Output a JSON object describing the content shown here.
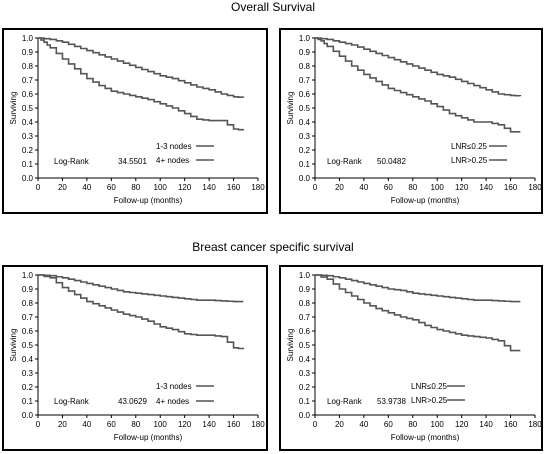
{
  "headings": {
    "overall": "Overall Survival",
    "bcss": "Breast cancer specific survival"
  },
  "chart_data": [
    {
      "type": "line",
      "title": "",
      "xlabel": "Follow-up (months)",
      "ylabel": "Surviving",
      "xlim": [
        0,
        180
      ],
      "ylim": [
        0,
        1.0
      ],
      "xticks": [
        "0",
        "20",
        "40",
        "60",
        "80",
        "100",
        "120",
        "140",
        "160",
        "180"
      ],
      "yticks": [
        "0.0",
        "0.1",
        "0.2",
        "0.3",
        "0.4",
        "0.5",
        "0.6",
        "0.7",
        "0.8",
        "0.9",
        "1.0"
      ],
      "stat_label": "Log-Rank",
      "stat_value": "34.5501",
      "series": [
        {
          "name": "1-3 nodes",
          "color": "#555555",
          "x": [
            0,
            10,
            20,
            30,
            40,
            50,
            60,
            70,
            80,
            90,
            100,
            110,
            120,
            130,
            140,
            150,
            160,
            168
          ],
          "y": [
            1.0,
            0.99,
            0.97,
            0.94,
            0.91,
            0.88,
            0.85,
            0.82,
            0.79,
            0.76,
            0.73,
            0.71,
            0.68,
            0.65,
            0.63,
            0.6,
            0.58,
            0.575
          ]
        },
        {
          "name": "4+ nodes",
          "color": "#555555",
          "x": [
            0,
            5,
            10,
            20,
            30,
            40,
            50,
            60,
            70,
            80,
            90,
            100,
            110,
            120,
            130,
            140,
            150,
            160,
            168
          ],
          "y": [
            1.0,
            0.97,
            0.93,
            0.85,
            0.78,
            0.71,
            0.66,
            0.62,
            0.6,
            0.58,
            0.56,
            0.53,
            0.5,
            0.46,
            0.42,
            0.41,
            0.41,
            0.35,
            0.34
          ]
        }
      ]
    },
    {
      "type": "line",
      "title": "",
      "xlabel": "Follow-up (months)",
      "ylabel": "Surviving",
      "xlim": [
        0,
        180
      ],
      "ylim": [
        0,
        1.0
      ],
      "xticks": [
        "0",
        "20",
        "40",
        "60",
        "80",
        "100",
        "120",
        "140",
        "160",
        "180"
      ],
      "yticks": [
        "0.0",
        "0.1",
        "0.2",
        "0.3",
        "0.4",
        "0.5",
        "0.6",
        "0.7",
        "0.8",
        "0.9",
        "1.0"
      ],
      "stat_label": "Log-Rank",
      "stat_value": "50.0482",
      "series": [
        {
          "name": "LNR≤0.25",
          "color": "#555555",
          "x": [
            0,
            10,
            20,
            30,
            40,
            50,
            60,
            70,
            80,
            90,
            100,
            110,
            120,
            130,
            140,
            150,
            160,
            168
          ],
          "y": [
            1.0,
            0.99,
            0.97,
            0.95,
            0.92,
            0.89,
            0.86,
            0.83,
            0.8,
            0.77,
            0.74,
            0.72,
            0.69,
            0.66,
            0.63,
            0.6,
            0.59,
            0.585
          ]
        },
        {
          "name": "LNR>0.25",
          "color": "#555555",
          "x": [
            0,
            5,
            10,
            20,
            30,
            40,
            50,
            60,
            70,
            80,
            90,
            100,
            110,
            120,
            130,
            140,
            150,
            160,
            168
          ],
          "y": [
            1.0,
            0.98,
            0.94,
            0.87,
            0.8,
            0.74,
            0.69,
            0.64,
            0.61,
            0.58,
            0.55,
            0.51,
            0.46,
            0.43,
            0.4,
            0.4,
            0.38,
            0.33,
            0.33
          ]
        }
      ]
    },
    {
      "type": "line",
      "title": "",
      "xlabel": "Follow-up (months)",
      "ylabel": "Surviving",
      "xlim": [
        0,
        180
      ],
      "ylim": [
        0,
        1.0
      ],
      "xticks": [
        "0",
        "20",
        "40",
        "60",
        "80",
        "100",
        "120",
        "140",
        "160",
        "180"
      ],
      "yticks": [
        "0.0",
        "0.1",
        "0.2",
        "0.3",
        "0.4",
        "0.5",
        "0.6",
        "0.7",
        "0.8",
        "0.9",
        "1.0"
      ],
      "stat_label": "Log-Rank",
      "stat_value": "43.0629",
      "series": [
        {
          "name": "1-3 nodes",
          "color": "#555555",
          "x": [
            0,
            10,
            20,
            30,
            40,
            50,
            60,
            70,
            80,
            90,
            100,
            110,
            120,
            130,
            140,
            150,
            160,
            168
          ],
          "y": [
            1.0,
            0.995,
            0.98,
            0.96,
            0.94,
            0.92,
            0.9,
            0.88,
            0.87,
            0.86,
            0.85,
            0.84,
            0.83,
            0.82,
            0.82,
            0.815,
            0.81,
            0.81
          ]
        },
        {
          "name": "4+ nodes",
          "color": "#555555",
          "x": [
            0,
            10,
            20,
            30,
            40,
            50,
            60,
            70,
            80,
            90,
            100,
            110,
            120,
            130,
            140,
            150,
            160,
            168
          ],
          "y": [
            1.0,
            0.98,
            0.91,
            0.86,
            0.81,
            0.78,
            0.75,
            0.72,
            0.7,
            0.67,
            0.63,
            0.61,
            0.58,
            0.57,
            0.57,
            0.56,
            0.48,
            0.47
          ]
        }
      ]
    },
    {
      "type": "line",
      "title": "",
      "xlabel": "Follow-up (months)",
      "ylabel": "Surviving",
      "xlim": [
        0,
        180
      ],
      "ylim": [
        0,
        1.0
      ],
      "xticks": [
        "0",
        "20",
        "40",
        "60",
        "80",
        "100",
        "120",
        "140",
        "160",
        "180"
      ],
      "yticks": [
        "0.0",
        "0.1",
        "0.2",
        "0.3",
        "0.4",
        "0.5",
        "0.6",
        "0.7",
        "0.8",
        "0.9",
        "1.0"
      ],
      "stat_label": "Log-Rank",
      "stat_value": "53.9738",
      "series": [
        {
          "name": "LNR≤0.25",
          "color": "#555555",
          "x": [
            0,
            10,
            20,
            30,
            40,
            50,
            60,
            70,
            80,
            90,
            100,
            110,
            120,
            130,
            140,
            150,
            160,
            168
          ],
          "y": [
            1.0,
            0.995,
            0.98,
            0.96,
            0.94,
            0.92,
            0.9,
            0.89,
            0.87,
            0.86,
            0.85,
            0.84,
            0.83,
            0.82,
            0.82,
            0.815,
            0.81,
            0.81
          ]
        },
        {
          "name": "LNR>0.25",
          "color": "#555555",
          "x": [
            0,
            10,
            20,
            30,
            40,
            50,
            60,
            70,
            80,
            90,
            100,
            110,
            120,
            130,
            140,
            150,
            160,
            168
          ],
          "y": [
            1.0,
            0.97,
            0.9,
            0.85,
            0.8,
            0.76,
            0.73,
            0.7,
            0.68,
            0.64,
            0.61,
            0.59,
            0.57,
            0.56,
            0.55,
            0.53,
            0.46,
            0.46
          ]
        }
      ]
    }
  ]
}
